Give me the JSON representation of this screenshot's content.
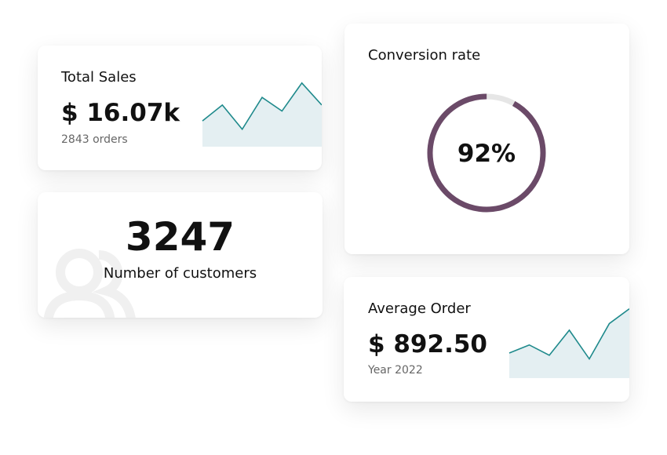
{
  "cards": {
    "total_sales": {
      "title": "Total Sales",
      "value": "$ 16.07k",
      "subtitle": "2843 orders",
      "sparkline": {
        "type": "line",
        "values": [
          34,
          55,
          23,
          65,
          47,
          84,
          55
        ],
        "ylim": [
          0,
          90
        ],
        "color": "#1f8a8c",
        "fill": "#e4eff2"
      }
    },
    "customers": {
      "value": "3247",
      "label": "Number of customers"
    },
    "conversion_rate": {
      "title": "Conversion rate",
      "value": 92,
      "value_label": "92%",
      "color": "#6b4a68",
      "track_color": "#e6e6e6"
    },
    "average_order": {
      "title": "Average Order",
      "value": "$ 892.50",
      "subtitle": "Year 2022",
      "sparkline": {
        "type": "line",
        "values": [
          34,
          45,
          31,
          65,
          26,
          74,
          94
        ],
        "ylim": [
          0,
          100
        ],
        "color": "#1f8a8c",
        "fill": "#e4eff2"
      }
    }
  }
}
